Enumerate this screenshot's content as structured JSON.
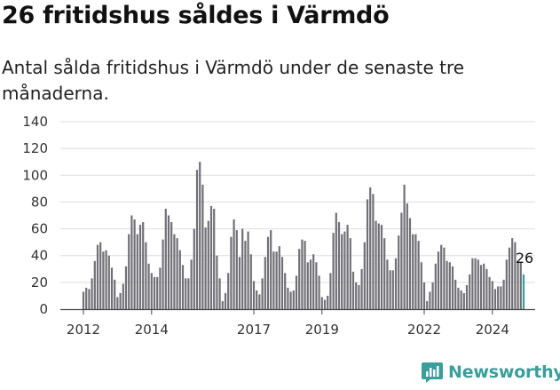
{
  "header": {
    "title": "26 fritidshus såldes i Värmdö",
    "subtitle": "Antal sålda fritidshus i Värmdö under de senaste tre månaderna."
  },
  "brand": {
    "name": "Newsworthy",
    "color": "#3a9e9a",
    "icon": "newsworthy-logo-icon"
  },
  "colors": {
    "bar": "#717077",
    "highlight": "#3a9e9a",
    "grid": "#dddddd",
    "axis": "#444444"
  },
  "chart_data": {
    "type": "bar",
    "start": "2012-01",
    "ylim": [
      0,
      140
    ],
    "yticks": [
      0,
      20,
      40,
      60,
      80,
      100,
      120,
      140
    ],
    "xticks": [
      {
        "label": "2012",
        "month": "2012-01"
      },
      {
        "label": "2014",
        "month": "2014-01"
      },
      {
        "label": "2017",
        "month": "2017-01"
      },
      {
        "label": "2019",
        "month": "2019-01"
      },
      {
        "label": "2022",
        "month": "2022-01"
      },
      {
        "label": "2024",
        "month": "2024-01"
      }
    ],
    "grid": true,
    "annotation": {
      "label": "26",
      "index": 155
    },
    "values": [
      13,
      16,
      15,
      23,
      36,
      48,
      50,
      43,
      44,
      40,
      31,
      22,
      9,
      12,
      19,
      32,
      56,
      70,
      67,
      56,
      63,
      65,
      50,
      34,
      27,
      24,
      24,
      31,
      52,
      75,
      70,
      65,
      56,
      53,
      44,
      33,
      23,
      23,
      37,
      60,
      104,
      110,
      93,
      61,
      66,
      77,
      75,
      40,
      23,
      6,
      12,
      27,
      54,
      67,
      59,
      39,
      60,
      51,
      58,
      41,
      21,
      14,
      11,
      23,
      39,
      54,
      59,
      43,
      43,
      47,
      39,
      27,
      16,
      13,
      14,
      25,
      45,
      52,
      51,
      35,
      37,
      41,
      35,
      25,
      9,
      7,
      10,
      27,
      57,
      72,
      65,
      56,
      58,
      63,
      53,
      28,
      20,
      18,
      30,
      50,
      82,
      91,
      86,
      66,
      64,
      63,
      53,
      37,
      29,
      29,
      38,
      55,
      72,
      93,
      79,
      68,
      56,
      56,
      51,
      35,
      20,
      6,
      13,
      20,
      34,
      43,
      48,
      46,
      36,
      35,
      32,
      22,
      16,
      14,
      12,
      18,
      26,
      38,
      38,
      37,
      33,
      34,
      30,
      24,
      21,
      15,
      17,
      17,
      22,
      37,
      46,
      53,
      50,
      35,
      35,
      26
    ]
  }
}
